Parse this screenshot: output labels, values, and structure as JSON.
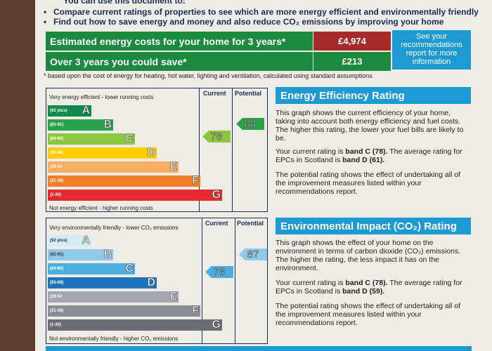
{
  "header": {
    "cut_text": "You can use this document to:",
    "bullets": [
      "Compare current ratings of properties to see which are more energy efficient and environmentally friendly",
      "Find out how to save energy and money and also reduce CO₂ emissions by improving your home"
    ]
  },
  "costs": {
    "estimated_label": "Estimated energy costs for your home for 3 years*",
    "estimated_value": "£4,974",
    "saving_label": "Over 3 years you could save*",
    "saving_value": "£213",
    "see_box": "See your recommendations report for more information",
    "footnote": "* based upon the cost of energy for heating, hot water, lighting and ventilation, calculated using standard assumptions"
  },
  "energy_chart": {
    "top_label": "Very energy efficient - lower running costs",
    "bottom_label": "Not energy efficient - higher running costs",
    "current_header": "Current",
    "potential_header": "Potential",
    "bands": [
      {
        "range": "(92 plus)",
        "letter": "A",
        "color": "#0f8a4a"
      },
      {
        "range": "(81-91)",
        "letter": "B",
        "color": "#2aa24a"
      },
      {
        "range": "(69-80)",
        "letter": "C",
        "color": "#8cc640"
      },
      {
        "range": "(55-68)",
        "letter": "D",
        "color": "#ffcc00"
      },
      {
        "range": "(39-54",
        "letter": "E",
        "color": "#f6ac63"
      },
      {
        "range": "(21-38)",
        "letter": "F",
        "color": "#ef7d29"
      },
      {
        "range": "(1-20)",
        "letter": "G",
        "color": "#e52a2f"
      }
    ],
    "current_value": "78",
    "potential_value": "88",
    "current_color": "#8cc640",
    "potential_color": "#2aa24a"
  },
  "env_chart": {
    "top_label": "Very environmentally friendly - lower CO₂ emissions",
    "bottom_label": "Not environmentally friendly - higher CO₂ emissions",
    "current_header": "Current",
    "potential_header": "Potential",
    "bands": [
      {
        "range": "(92 plus)",
        "letter": "A",
        "color": "#d4ecf8"
      },
      {
        "range": "(81-91)",
        "letter": "B",
        "color": "#8ec9ea"
      },
      {
        "range": "(69-80)",
        "letter": "C",
        "color": "#4baee0"
      },
      {
        "range": "(55-68)",
        "letter": "D",
        "color": "#1f73b8"
      },
      {
        "range": "(39-54",
        "letter": "E",
        "color": "#a4a7ab"
      },
      {
        "range": "(21-38)",
        "letter": "F",
        "color": "#8a8d91"
      },
      {
        "range": "(1-20)",
        "letter": "G",
        "color": "#6a6d71"
      }
    ],
    "current_value": "78",
    "potential_value": "87",
    "current_color": "#4baee0",
    "potential_color": "#8ec9ea"
  },
  "energy_text": {
    "title": "Energy Efficiency Rating",
    "p1": "This graph shows the current efficiency of your home, taking into account both energy efficiency and fuel costs. The higher this rating, the lower your fuel bills are likely to be.",
    "p2_a": "Your current rating is ",
    "p2_b": "band C (78).",
    "p2_c": " The average rating for EPCs in Scotland is ",
    "p2_d": "band D (61).",
    "p3": "The potential rating shows the effect of undertaking all of the improvement measures listed within your recommendations report."
  },
  "env_text": {
    "title": "Environmental Impact (CO₂) Rating",
    "p1": "This graph shows the effect of your home on the environment in terms of carbon dioxide (CO₂) emissions. The higher the rating, the less impact it has on the environment.",
    "p2_a": "Your current rating is ",
    "p2_b": "band C (78).",
    "p2_c": " The average rating for EPCs in Scotland is ",
    "p2_d": "band D (59).",
    "p3": "The potential rating shows the effect of undertaking all of the improvement measures listed within your recommendations report."
  }
}
